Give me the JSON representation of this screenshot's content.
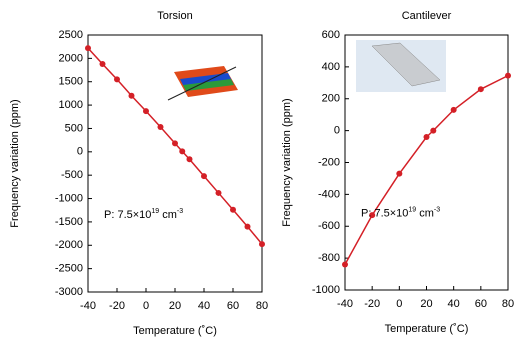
{
  "chart_data": [
    {
      "type": "line",
      "title": "Torsion",
      "xlabel": "Temperature (˚C)",
      "ylabel": "Frequency variation (ppm)",
      "x": [
        -40,
        -30,
        -20,
        -10,
        0,
        10,
        20,
        25,
        30,
        40,
        50,
        60,
        70,
        80
      ],
      "series": [
        {
          "color": "#d42027",
          "values": [
            2220,
            1880,
            1550,
            1200,
            870,
            530,
            180,
            10,
            -160,
            -520,
            -880,
            -1240,
            -1600,
            -1975
          ]
        }
      ],
      "xlim": [
        -40,
        80
      ],
      "xticks": [
        -40,
        -20,
        0,
        20,
        40,
        60,
        80
      ],
      "ylim": [
        -3000,
        2500
      ],
      "yticks": [
        -3000,
        -2500,
        -2000,
        -1500,
        -1000,
        -500,
        0,
        500,
        1000,
        1500,
        2000,
        2500
      ],
      "annotation": {
        "text": "P: 7.5×10",
        "exponent": "19",
        "unit": "cm",
        "unit_exponent": "-3"
      }
    },
    {
      "type": "line",
      "title": "Cantilever",
      "xlabel": "Temperature (˚C)",
      "ylabel": "Frequency variation (ppm)",
      "x": [
        -40,
        -20,
        0,
        20,
        25,
        40,
        60,
        80
      ],
      "series": [
        {
          "color": "#d42027",
          "values": [
            -840,
            -530,
            -270,
            -40,
            0,
            130,
            260,
            345
          ]
        }
      ],
      "xlim": [
        -40,
        80
      ],
      "xticks": [
        -40,
        -20,
        0,
        20,
        40,
        60,
        80
      ],
      "ylim": [
        -1000,
        600
      ],
      "yticks": [
        -1000,
        -800,
        -600,
        -400,
        -200,
        0,
        200,
        400,
        600
      ],
      "annotation": {
        "text": "P: 7.5×10",
        "exponent": "19",
        "unit": "cm",
        "unit_exponent": "-3"
      }
    }
  ]
}
